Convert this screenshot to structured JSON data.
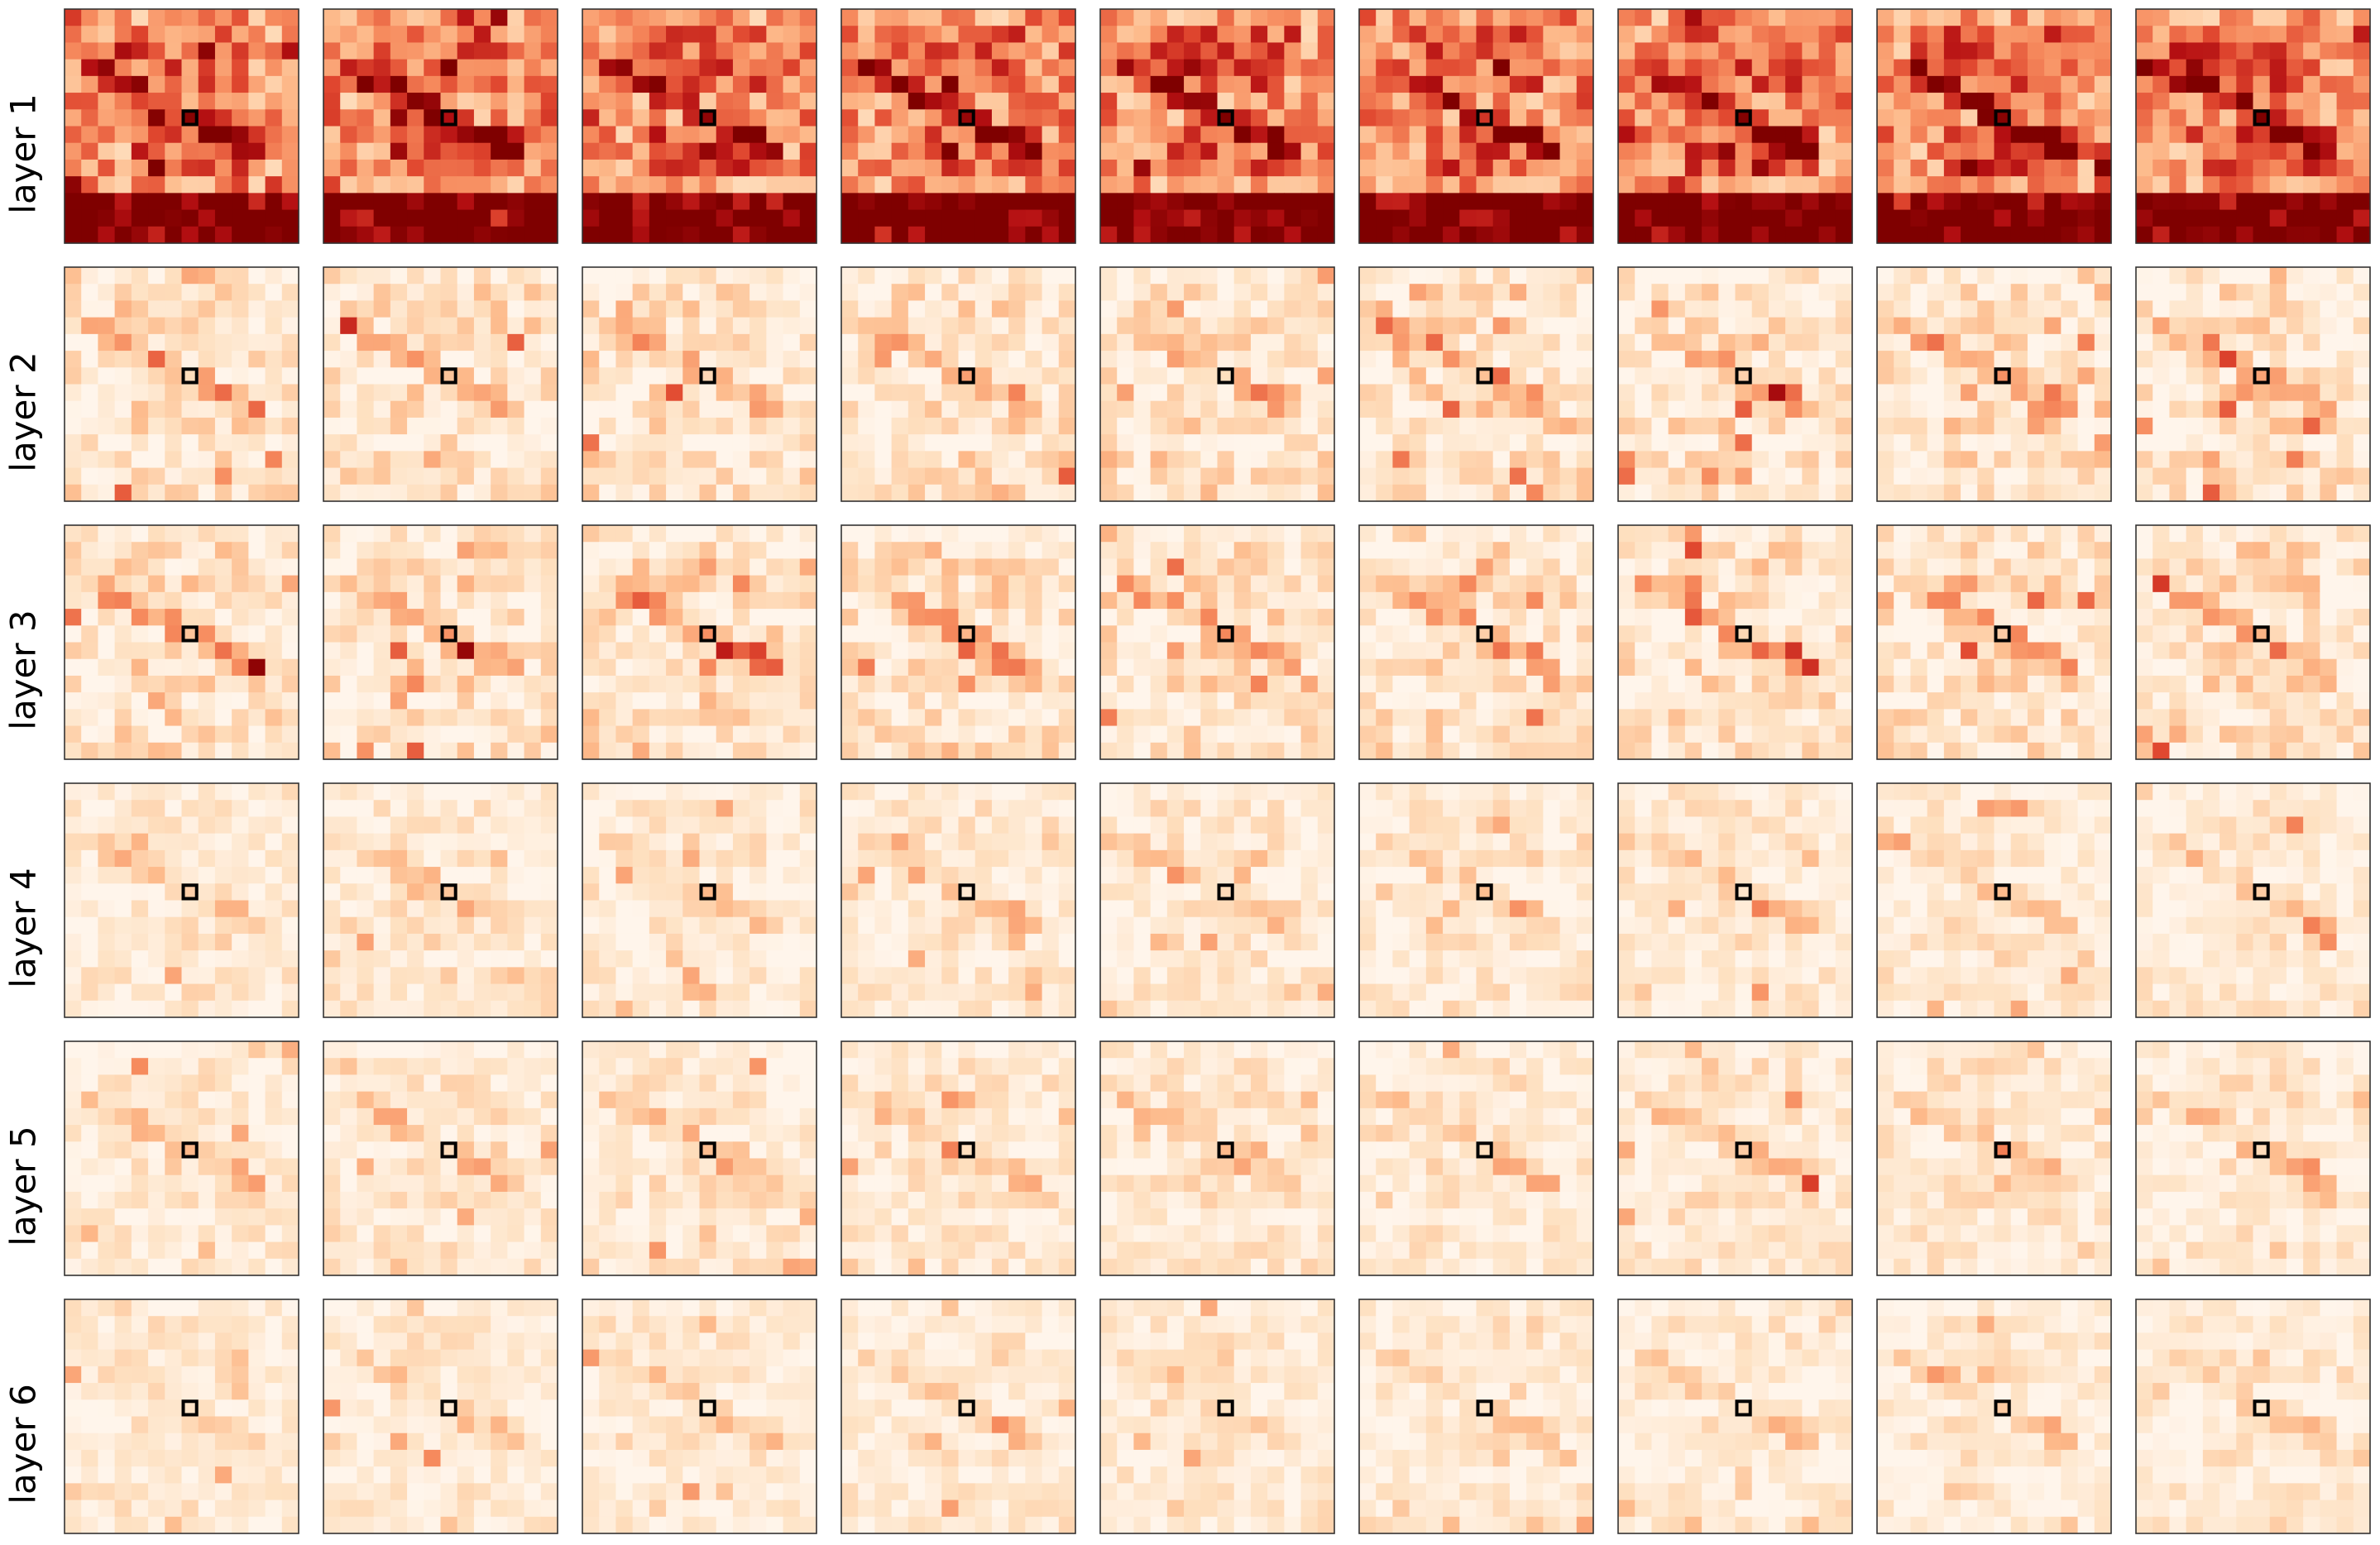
{
  "chart_data": {
    "type": "heatmap",
    "title": "",
    "xlabel": "",
    "ylabel": "",
    "description_grid": {
      "rows": 6,
      "cols": 9,
      "cells_per_map": 14
    },
    "row_labels": [
      "layer 1",
      "layer 2",
      "layer 3",
      "layer 4",
      "layer 5",
      "layer 6"
    ],
    "colormap": "OrRd",
    "colormap_stops": [
      "#fff5eb",
      "#fee0c0",
      "#fdba8b",
      "#f68a5d",
      "#e0472f",
      "#b40f12",
      "#7f0000"
    ],
    "query_marker": {
      "row": 8,
      "col": 7,
      "stroke": "#000000"
    },
    "ticks_visible": false,
    "cmap_note": "attention weight, darker = higher"
  }
}
